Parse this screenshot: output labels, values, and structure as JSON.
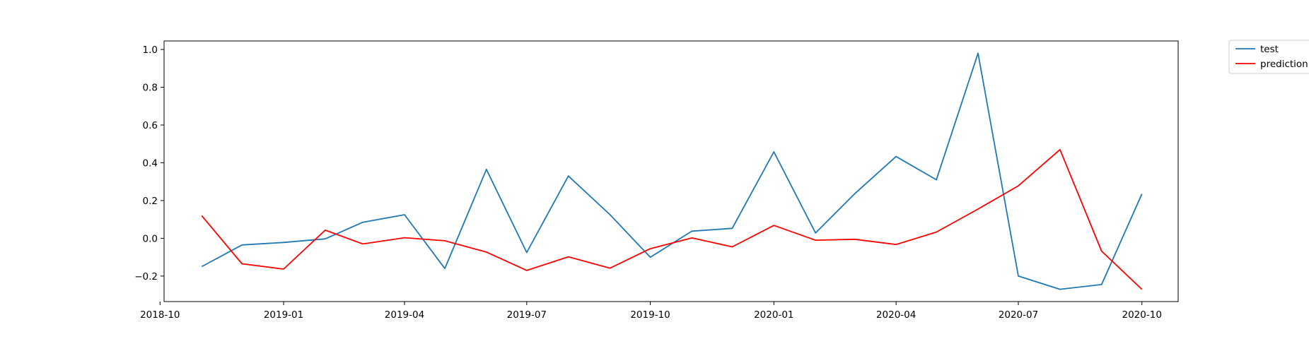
{
  "chart_data": {
    "type": "line",
    "x": [
      "2018-11",
      "2018-12",
      "2019-01",
      "2019-02",
      "2019-03",
      "2019-04",
      "2019-05",
      "2019-06",
      "2019-07",
      "2019-08",
      "2019-09",
      "2019-10",
      "2019-11",
      "2019-12",
      "2020-01",
      "2020-02",
      "2020-03",
      "2020-04",
      "2020-05",
      "2020-06",
      "2020-07",
      "2020-08",
      "2020-09",
      "2020-10"
    ],
    "series": [
      {
        "name": "test",
        "color": "#1f77b4",
        "values": [
          -0.15,
          -0.035,
          -0.022,
          -0.003,
          0.085,
          0.125,
          -0.16,
          0.365,
          -0.075,
          0.33,
          0.125,
          -0.1,
          0.038,
          0.053,
          0.458,
          0.028,
          0.235,
          0.433,
          0.31,
          0.98,
          -0.2,
          -0.27,
          -0.245,
          0.235
        ]
      },
      {
        "name": "prediction",
        "color": "#ff0000",
        "values": [
          0.12,
          -0.135,
          -0.163,
          0.043,
          -0.03,
          0.003,
          -0.013,
          -0.073,
          -0.17,
          -0.098,
          -0.158,
          -0.055,
          0.002,
          -0.045,
          0.068,
          -0.01,
          -0.005,
          -0.033,
          0.033,
          0.155,
          0.278,
          0.47,
          -0.068,
          -0.27
        ]
      }
    ],
    "xticks": [
      "2018-10",
      "2019-01",
      "2019-04",
      "2019-07",
      "2019-10",
      "2020-01",
      "2020-04",
      "2020-07",
      "2020-10"
    ],
    "yticks": [
      -0.2,
      0.0,
      0.2,
      0.4,
      0.6,
      0.8,
      1.0
    ],
    "ylim": [
      -0.335,
      1.045
    ],
    "xlim": [
      "2018-10-04",
      "2020-10-28"
    ],
    "title": "",
    "xlabel": "",
    "ylabel": "",
    "grid": false,
    "legend_position": "outside-top-right"
  }
}
